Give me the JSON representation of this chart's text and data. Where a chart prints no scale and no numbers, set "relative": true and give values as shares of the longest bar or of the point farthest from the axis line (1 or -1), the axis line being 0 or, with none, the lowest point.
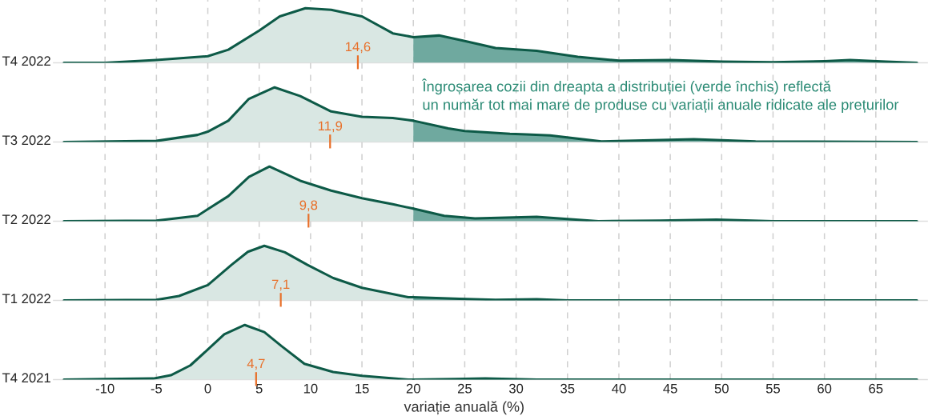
{
  "chart_data": [
    {
      "type": "area",
      "relative": true,
      "ylabel": "T4 2022",
      "xlim": [
        -15,
        70
      ],
      "grid": "x",
      "tick_labels": false,
      "series": [
        {
          "color": "#d9e7e3",
          "x": [
            -14,
            -10,
            -5,
            0,
            2,
            5,
            7,
            9.5,
            12,
            15,
            18,
            20
          ],
          "values": [
            0,
            0,
            0.05,
            0.12,
            0.24,
            0.59,
            0.85,
            1.0,
            0.97,
            0.85,
            0.54,
            0.47
          ]
        },
        {
          "color": "#6fa99f",
          "x": [
            20,
            22.5,
            25,
            28,
            32,
            36,
            40,
            45,
            50,
            55,
            60,
            62.5,
            66,
            69
          ],
          "values": [
            0.47,
            0.5,
            0.4,
            0.27,
            0.22,
            0.11,
            0.04,
            0.05,
            0.02,
            0.01,
            0.03,
            0.05,
            0.02,
            0
          ]
        }
      ],
      "annotations": [
        {
          "text": "14,6",
          "x": 14.6,
          "y": 0
        }
      ]
    },
    {
      "type": "area",
      "relative": true,
      "ylabel": "T3 2022",
      "xlim": [
        -15,
        70
      ],
      "grid": "x",
      "tick_labels": false,
      "series": [
        {
          "color": "#d9e7e3",
          "x": [
            -14,
            -5,
            -1,
            0,
            2,
            4,
            6.5,
            9,
            12,
            15,
            18,
            20
          ],
          "values": [
            0,
            0.02,
            0.13,
            0.19,
            0.39,
            0.79,
            1.0,
            0.84,
            0.56,
            0.46,
            0.44,
            0.39
          ]
        },
        {
          "color": "#6fa99f",
          "x": [
            20,
            23.4,
            25,
            29.4,
            31,
            33.3,
            38.3,
            47.3,
            53.3,
            69
          ],
          "values": [
            0.39,
            0.25,
            0.2,
            0.15,
            0.14,
            0.12,
            0.01,
            0.05,
            0.01,
            0
          ]
        }
      ],
      "annotations": [
        {
          "text": "11,9",
          "x": 11.9,
          "y": 0
        },
        "Îngroșarea cozii din dreapta a distribuției (verde închis) reflectă\nun număr tot mai mare de produse cu variații anuale ridicate ale prețurilor"
      ]
    },
    {
      "type": "area",
      "relative": true,
      "ylabel": "T2 2022",
      "xlim": [
        -15,
        70
      ],
      "grid": "x",
      "tick_labels": false,
      "series": [
        {
          "color": "#d9e7e3",
          "x": [
            -14,
            -5,
            -1,
            2,
            4,
            6,
            9,
            12,
            15,
            18,
            20
          ],
          "values": [
            0,
            0.01,
            0.1,
            0.46,
            0.81,
            1.0,
            0.74,
            0.56,
            0.42,
            0.31,
            0.23
          ]
        },
        {
          "color": "#6fa99f",
          "x": [
            20,
            23,
            26,
            32,
            38,
            44,
            49.5,
            55,
            69
          ],
          "values": [
            0.23,
            0.1,
            0.05,
            0.08,
            0,
            0.01,
            0.03,
            0,
            0
          ]
        }
      ],
      "annotations": [
        {
          "text": "9,8",
          "x": 9.8,
          "y": 0
        }
      ]
    },
    {
      "type": "area",
      "relative": true,
      "ylabel": "T1 2022",
      "xlim": [
        -15,
        70
      ],
      "grid": "x",
      "tick_labels": false,
      "series": [
        {
          "color": "#d9e7e3",
          "x": [
            -14,
            -5,
            -2.8,
            0,
            2.3,
            3.9,
            5.5,
            7.5,
            9.7,
            12.2,
            15,
            19.5,
            20
          ],
          "values": [
            0,
            0.01,
            0.08,
            0.28,
            0.65,
            0.89,
            1.0,
            0.88,
            0.65,
            0.41,
            0.23,
            0.06,
            0.06
          ]
        },
        {
          "color": "#6fa99f",
          "x": [
            20,
            24.5,
            28,
            32,
            35,
            69
          ],
          "values": [
            0.06,
            0.03,
            0.01,
            0.02,
            0,
            0
          ]
        }
      ],
      "annotations": [
        {
          "text": "7,1",
          "x": 7.1,
          "y": 0
        }
      ]
    },
    {
      "type": "area",
      "relative": true,
      "ylabel": "T4 2021",
      "xlabel": "variație anuală (%)",
      "xlim": [
        -15,
        70
      ],
      "grid": "x",
      "tick_labels": "x",
      "xticks": [
        -10,
        -5,
        0,
        5,
        10,
        15,
        20,
        25,
        30,
        35,
        40,
        45,
        50,
        55,
        60,
        65
      ],
      "series": [
        {
          "color": "#d9e7e3",
          "x": [
            -14,
            -10,
            -5.3,
            -3.6,
            -1.7,
            0,
            1.6,
            3.6,
            5.5,
            7.2,
            9.4,
            12.2,
            15,
            19.5,
            20
          ],
          "values": [
            0,
            0.01,
            0.02,
            0.08,
            0.26,
            0.55,
            0.83,
            1.0,
            0.87,
            0.61,
            0.29,
            0.14,
            0.07,
            0,
            0
          ]
        },
        {
          "color": "#6fa99f",
          "x": [
            20,
            24,
            27,
            32,
            69
          ],
          "values": [
            0,
            0.01,
            0.02,
            0,
            0
          ]
        }
      ],
      "annotations": [
        {
          "text": "4,7",
          "x": 4.7,
          "y": 0
        }
      ]
    }
  ]
}
